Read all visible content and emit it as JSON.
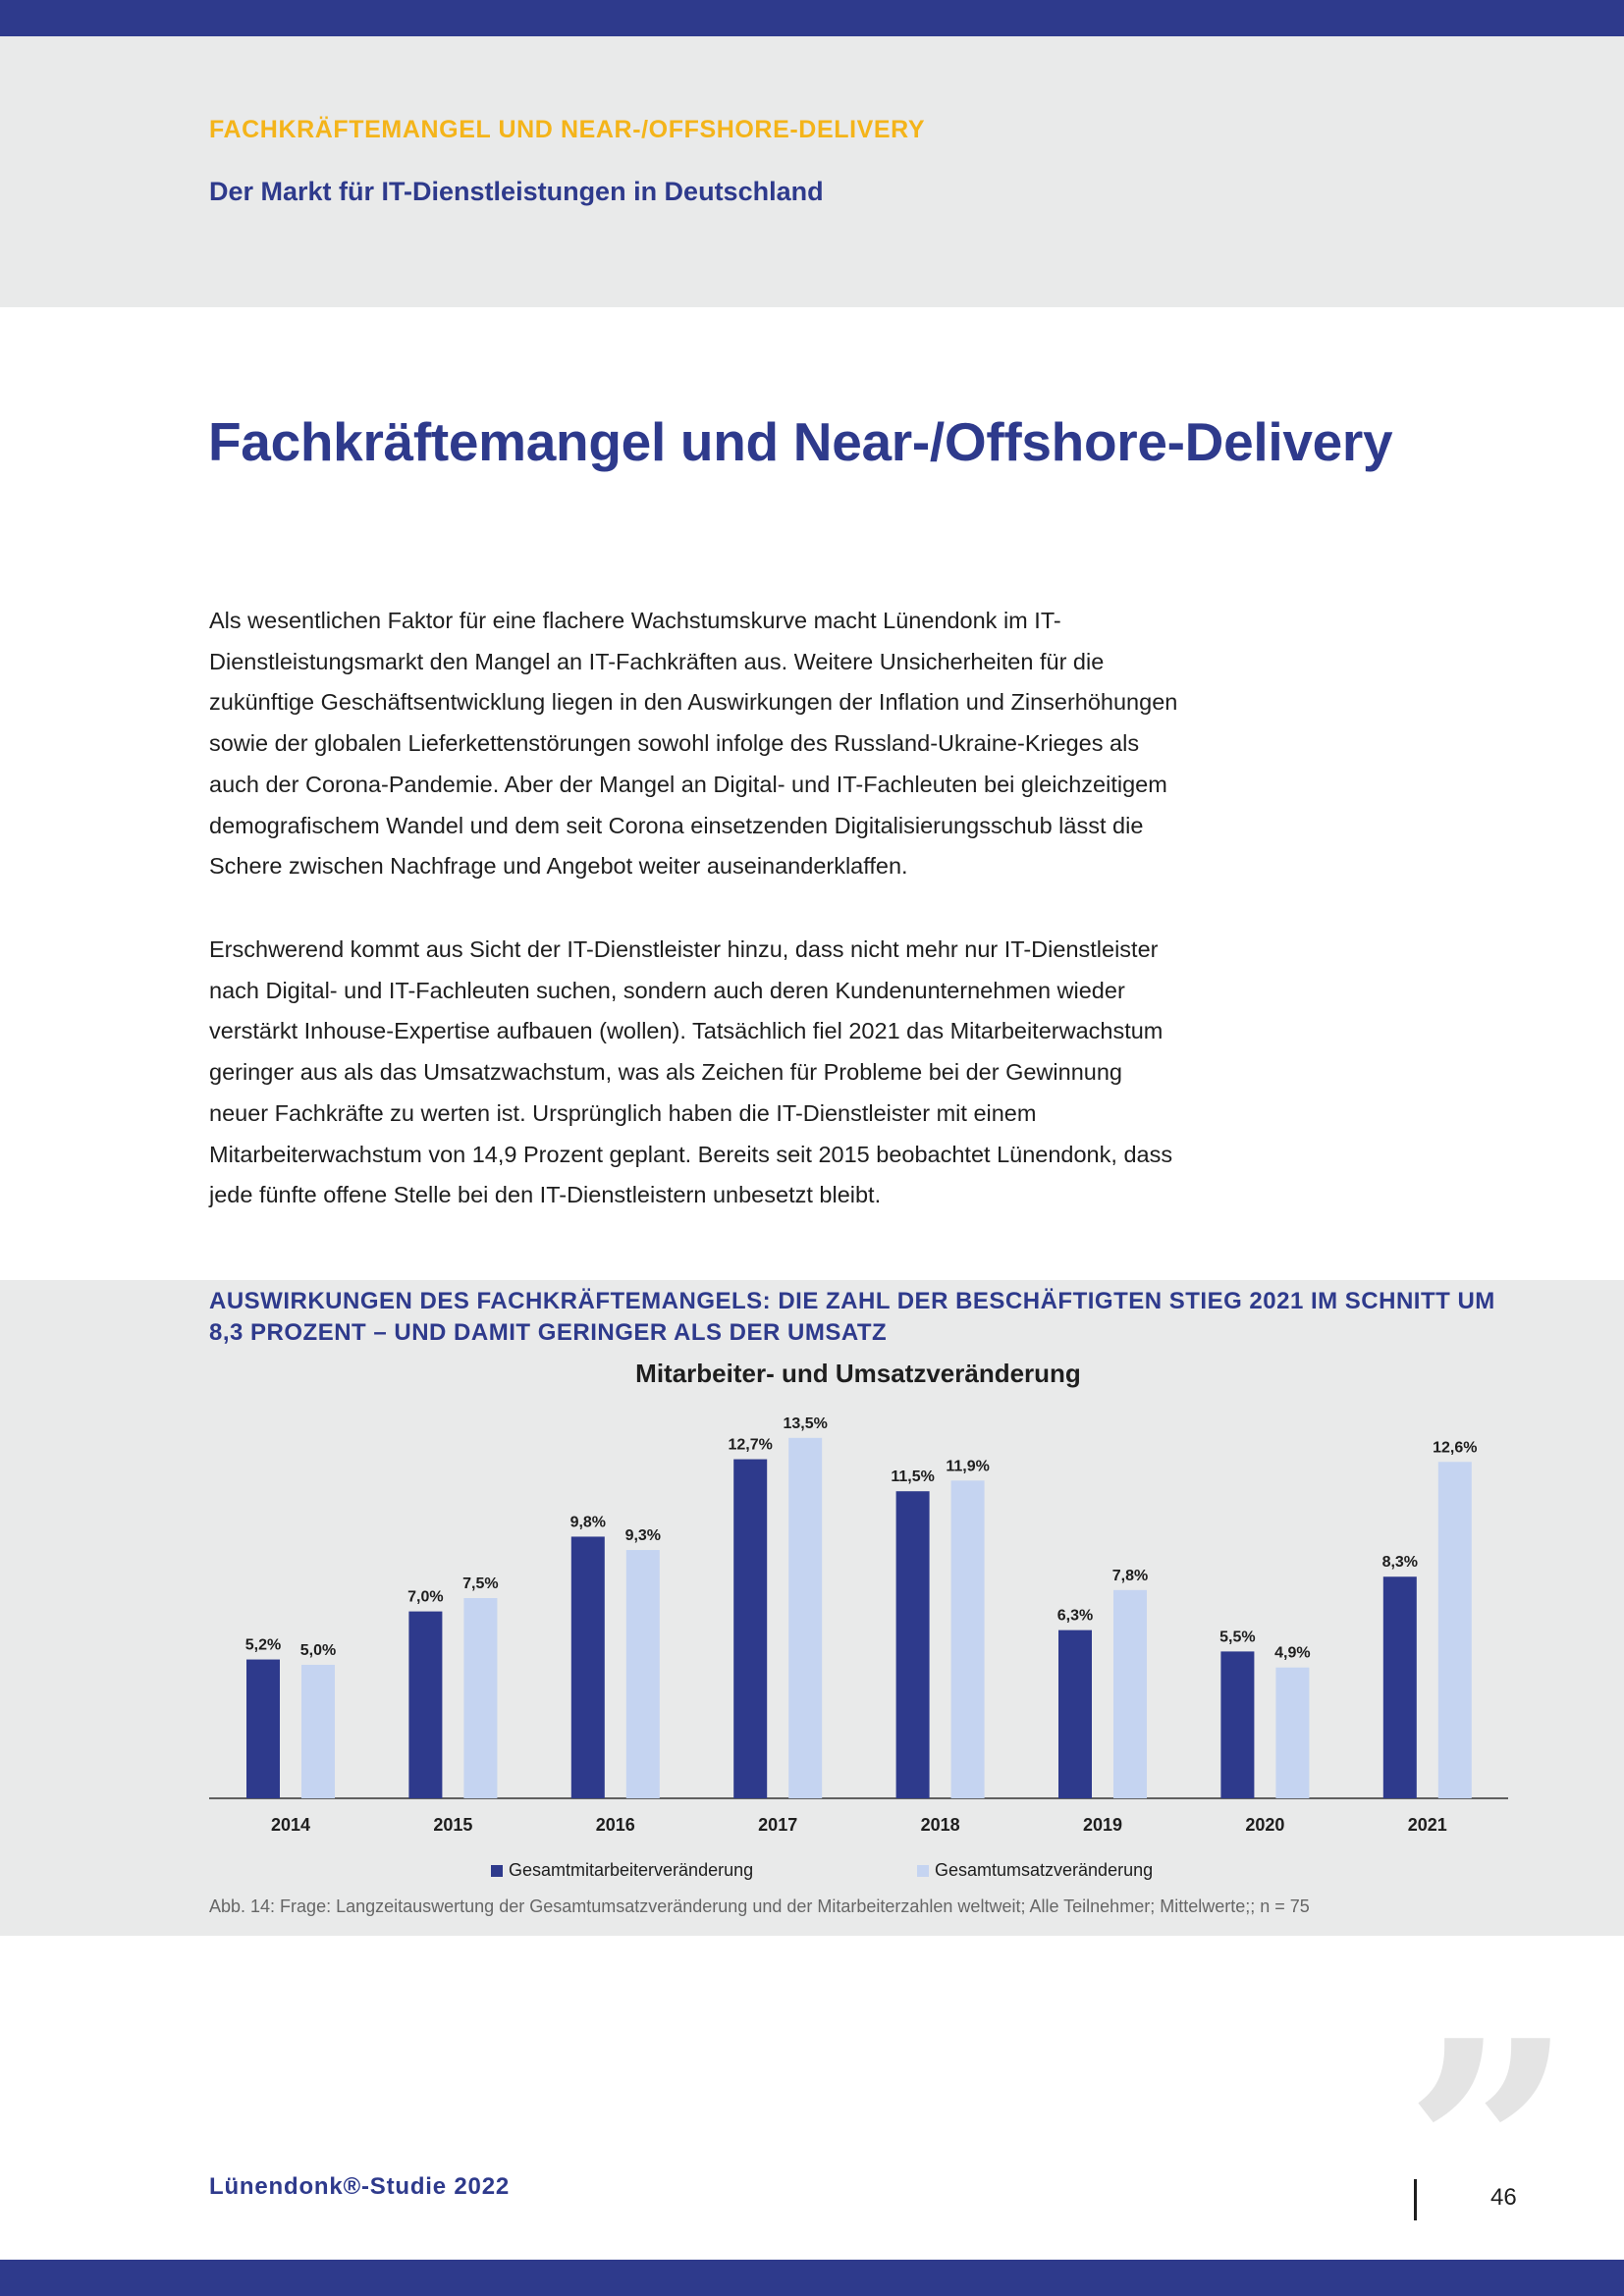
{
  "header": {
    "kicker": "FACHKRÄFTEMANGEL UND NEAR-/OFFSHORE-DELIVERY",
    "subtitle": "Der Markt für IT-Dienstleistungen in Deutschland"
  },
  "main": {
    "title": "Fachkräftemangel und Near-/Offshore-Delivery",
    "paragraphs": [
      "Als wesentlichen Faktor für eine flachere Wachstumskurve macht Lünendonk im IT-Dienstleistungsmarkt den Mangel an IT-Fachkräften aus. Weitere Unsicherheiten für die zukünftige Geschäftsentwicklung liegen in den Auswirkungen der Inflation und Zinserhöhungen sowie der globalen Lieferkettenstörungen sowohl infolge des Russland-Ukraine-Krieges als auch der Corona-Pandemie. Aber der Mangel an Digital- und IT-Fachleuten bei gleichzeitigem demografischem Wandel und dem seit Corona einsetzenden Digitalisierungsschub lässt die Schere zwischen Nachfrage und Angebot weiter auseinanderklaffen.",
      "Erschwerend kommt aus Sicht der IT-Dienstleister hinzu, dass nicht mehr nur IT-Dienstleister nach Digital- und IT-Fachleuten suchen, sondern auch deren Kundenunternehmen wieder verstärkt Inhouse-Expertise aufbauen (wollen). Tatsächlich fiel 2021 das Mitarbeiterwachstum geringer aus als das Umsatzwachstum, was als Zeichen für Probleme bei der Gewinnung neuer Fachkräfte zu werten ist. Ursprünglich haben die IT-Dienstleister mit einem Mitarbeiterwachstum von 14,9 Prozent geplant. Bereits seit 2015 beobachtet Lünendonk, dass jede fünfte offene Stelle bei den IT-Dienstleistern unbesetzt bleibt."
    ]
  },
  "figure": {
    "heading": "Auswirkungen des Fachkräftemangels: Die Zahl der Beschäftigten stieg 2021 im Schnitt um 8,3 Prozent – und damit geringer als der Umsatz",
    "caption": "Abb. 14: Frage: Langzeitauswertung der Gesamtumsatzveränderung und der Mitarbeiterzahlen weltweit; Alle Teilnehmer; Mittelwerte;; n = 75"
  },
  "chart_data": {
    "type": "bar",
    "title": "Mitarbeiter- und Umsatzveränderung",
    "categories": [
      "2014",
      "2015",
      "2016",
      "2017",
      "2018",
      "2019",
      "2020",
      "2021"
    ],
    "series": [
      {
        "name": "Gesamtmitarbeiterveränderung",
        "color": "#2e3a8c",
        "values": [
          5.2,
          7.0,
          9.8,
          12.7,
          11.5,
          6.3,
          5.5,
          8.3
        ],
        "labels": [
          "5,2%",
          "7,0%",
          "9,8%",
          "12,7%",
          "11,5%",
          "6,3%",
          "5,5%",
          "8,3%"
        ]
      },
      {
        "name": "Gesamtumsatzveränderung",
        "color": "#c5d4f1",
        "values": [
          5.0,
          7.5,
          9.3,
          13.5,
          11.9,
          7.8,
          4.9,
          12.6
        ],
        "labels": [
          "5,0%",
          "7,5%",
          "9,3%",
          "13,5%",
          "11,9%",
          "7,8%",
          "4,9%",
          "12,6%"
        ]
      }
    ],
    "ylim": [
      0,
      14
    ],
    "grid": false,
    "legend_position": "bottom-center"
  },
  "footer": {
    "brand": "Lünendonk®-Studie 2022",
    "page_number": "46"
  },
  "decoration": {
    "quote_mark": "”"
  }
}
